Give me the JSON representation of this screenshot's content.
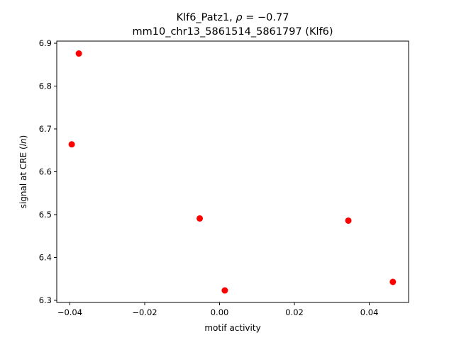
{
  "chart_data": {
    "type": "scatter",
    "title_line1": "Klf6_Patz1, ",
    "title_rho_symbol": "ρ",
    "title_rho_value": " = −0.77",
    "title_line2": "mm10_chr13_5861514_5861797 (Klf6)",
    "xlabel": "motif activity",
    "ylabel_prefix": "signal at CRE (",
    "ylabel_italic": "ln",
    "ylabel_suffix": ")",
    "xlim": [
      -0.0435,
      0.0505
    ],
    "ylim": [
      6.295,
      6.905
    ],
    "xticks": [
      -0.04,
      -0.02,
      0.0,
      0.02,
      0.04
    ],
    "xtick_labels": [
      "−0.04",
      "−0.02",
      "0.00",
      "0.02",
      "0.04"
    ],
    "yticks": [
      6.3,
      6.4,
      6.5,
      6.6,
      6.7,
      6.8,
      6.9
    ],
    "ytick_labels": [
      "6.3",
      "6.4",
      "6.5",
      "6.6",
      "6.7",
      "6.8",
      "6.9"
    ],
    "grid": false,
    "marker_color": "#ff0000",
    "points": [
      {
        "x": -0.0376,
        "y": 6.876
      },
      {
        "x": -0.0395,
        "y": 6.664
      },
      {
        "x": -0.0053,
        "y": 6.491
      },
      {
        "x": 0.0014,
        "y": 6.323
      },
      {
        "x": 0.0344,
        "y": 6.486
      },
      {
        "x": 0.0463,
        "y": 6.343
      }
    ]
  }
}
